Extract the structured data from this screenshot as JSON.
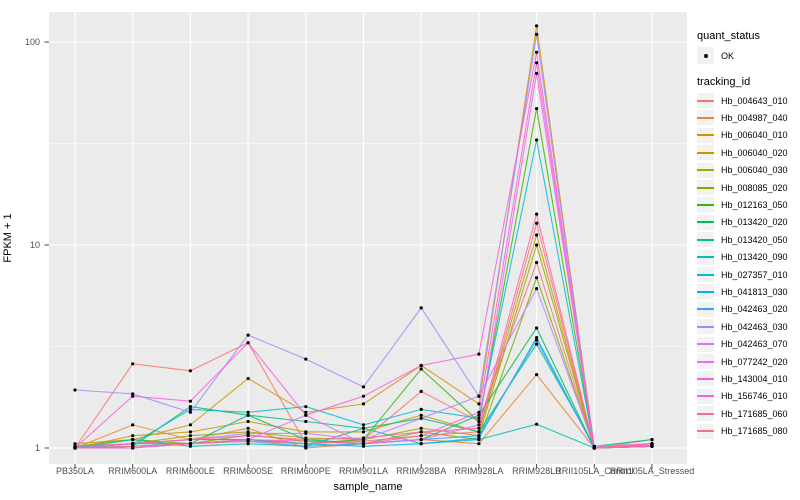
{
  "figure": {
    "background": "#FFFFFF",
    "panel_background": "#EBEBEB",
    "gridline_color": "#FFFFFF",
    "tick_color": "#333333",
    "axis_text_color": "#4D4D4D",
    "point_color": "#000000"
  },
  "axes": {
    "x_title": "sample_name",
    "y_title": "FPKM + 1",
    "y_ticks": [
      "1",
      "10",
      "100"
    ],
    "y_tick_values": [
      1,
      10,
      100
    ]
  },
  "legend": {
    "quant_status_title": "quant_status",
    "quant_status_items": [
      {
        "label": "OK",
        "marker": "point"
      }
    ],
    "tracking_id_title": "tracking_id",
    "key_background": "#F2F2F2"
  },
  "chart_data": {
    "type": "line",
    "x_type": "categorical",
    "xlabel": "sample_name",
    "ylabel": "FPKM + 1",
    "y_scale": "log10",
    "ylim": [
      0.85,
      140
    ],
    "y_major_gridlines": [
      1,
      10,
      100
    ],
    "y_minor_gridlines": [
      3.1623,
      31.6228
    ],
    "grid": true,
    "legend_position": "right",
    "categories": [
      "PB350LA",
      "RRIM600LA",
      "RRIM600LE",
      "RRIM600SE",
      "RRIM600PE",
      "RRIM901LA",
      "RRIM928BA",
      "RRIM928LA",
      "RRIM928LB",
      "RRII105LA_Control",
      "RRII105LA_Stressed"
    ],
    "series": [
      {
        "name": "Hb_004643_010",
        "color": "#F8766D",
        "values": [
          1.0,
          2.6,
          2.4,
          3.3,
          1.05,
          1.1,
          1.9,
          1.35,
          8.2,
          1.0,
          1.05
        ]
      },
      {
        "name": "Hb_004987_040",
        "color": "#EB8335",
        "values": [
          1.0,
          1.3,
          1.1,
          1.25,
          1.0,
          1.05,
          1.1,
          1.05,
          2.3,
          1.0,
          1.1
        ]
      },
      {
        "name": "Hb_006040_010",
        "color": "#D89000",
        "values": [
          1.05,
          1.1,
          1.3,
          2.2,
          1.5,
          1.65,
          2.55,
          1.65,
          120,
          1.0,
          1.05
        ]
      },
      {
        "name": "Hb_006040_020",
        "color": "#C09B00",
        "values": [
          1.0,
          1.15,
          1.2,
          1.35,
          1.2,
          1.2,
          1.45,
          1.2,
          11.2,
          1.0,
          1.02
        ]
      },
      {
        "name": "Hb_006040_030",
        "color": "#A3A500",
        "values": [
          1.0,
          1.05,
          1.15,
          1.2,
          1.12,
          1.1,
          1.25,
          1.15,
          10.0,
          1.0,
          1.02
        ]
      },
      {
        "name": "Hb_008085_020",
        "color": "#7CAE00",
        "values": [
          1.02,
          1.1,
          1.05,
          1.16,
          1.08,
          1.05,
          1.2,
          1.1,
          6.9,
          1.0,
          1.03
        ]
      },
      {
        "name": "Hb_012163_050",
        "color": "#39B600",
        "values": [
          1.0,
          1.05,
          1.1,
          1.1,
          1.05,
          1.1,
          2.45,
          1.35,
          47,
          1.0,
          1.05
        ]
      },
      {
        "name": "Hb_013420_020",
        "color": "#00BC51",
        "values": [
          1.0,
          1.02,
          1.6,
          1.45,
          1.1,
          1.05,
          1.1,
          1.45,
          3.9,
          1.0,
          1.02
        ]
      },
      {
        "name": "Hb_013420_050",
        "color": "#00C087",
        "values": [
          1.0,
          1.05,
          1.05,
          1.45,
          1.35,
          1.25,
          1.4,
          1.2,
          3.25,
          1.02,
          1.1
        ]
      },
      {
        "name": "Hb_013420_090",
        "color": "#00C0B3",
        "values": [
          1.0,
          1.1,
          1.02,
          1.05,
          1.02,
          1.25,
          1.05,
          1.1,
          1.31,
          1.0,
          1.02
        ]
      },
      {
        "name": "Hb_027357_010",
        "color": "#00BCD6",
        "values": [
          1.02,
          1.05,
          1.55,
          1.5,
          1.6,
          1.3,
          1.55,
          1.4,
          32.9,
          1.0,
          1.05
        ]
      },
      {
        "name": "Hb_041813_030",
        "color": "#00B3F2",
        "values": [
          1.0,
          1.02,
          1.05,
          1.1,
          1.05,
          1.02,
          1.05,
          1.12,
          3.5,
          1.0,
          1.02
        ]
      },
      {
        "name": "Hb_042463_020",
        "color": "#35A2FF",
        "values": [
          1.0,
          1.0,
          1.05,
          1.08,
          1.02,
          1.05,
          1.1,
          1.15,
          3.4,
          1.0,
          1.02
        ]
      },
      {
        "name": "Hb_042463_030",
        "color": "#9590FF",
        "values": [
          1.93,
          1.85,
          1.5,
          3.6,
          2.74,
          2.0,
          4.9,
          1.8,
          109,
          1.0,
          1.05
        ]
      },
      {
        "name": "Hb_042463_070",
        "color": "#C77CFF",
        "values": [
          1.0,
          1.05,
          1.1,
          1.18,
          1.18,
          1.1,
          1.4,
          1.8,
          6.1,
          1.02,
          1.05
        ]
      },
      {
        "name": "Hb_077242_020",
        "color": "#E76BF3",
        "values": [
          1.0,
          1.02,
          1.05,
          1.1,
          1.45,
          1.05,
          1.1,
          1.3,
          70,
          1.0,
          1.02
        ]
      },
      {
        "name": "Hb_143004_010",
        "color": "#FA62DB",
        "values": [
          1.0,
          1.8,
          1.7,
          3.3,
          1.45,
          1.8,
          2.55,
          2.9,
          89,
          1.0,
          1.05
        ]
      },
      {
        "name": "Hb_156746_010",
        "color": "#FF61CC",
        "values": [
          1.0,
          1.0,
          1.05,
          1.1,
          1.08,
          1.05,
          1.15,
          1.5,
          79,
          1.0,
          1.02
        ]
      },
      {
        "name": "Hb_171685_060",
        "color": "#FF67A4",
        "values": [
          1.02,
          1.05,
          1.1,
          1.15,
          1.1,
          1.12,
          1.2,
          1.25,
          14.2,
          1.0,
          1.05
        ]
      },
      {
        "name": "Hb_171685_080",
        "color": "#FC717F",
        "values": [
          1.0,
          1.02,
          1.05,
          1.08,
          1.05,
          1.08,
          1.15,
          1.2,
          12.8,
          1.0,
          1.03
        ]
      }
    ]
  }
}
